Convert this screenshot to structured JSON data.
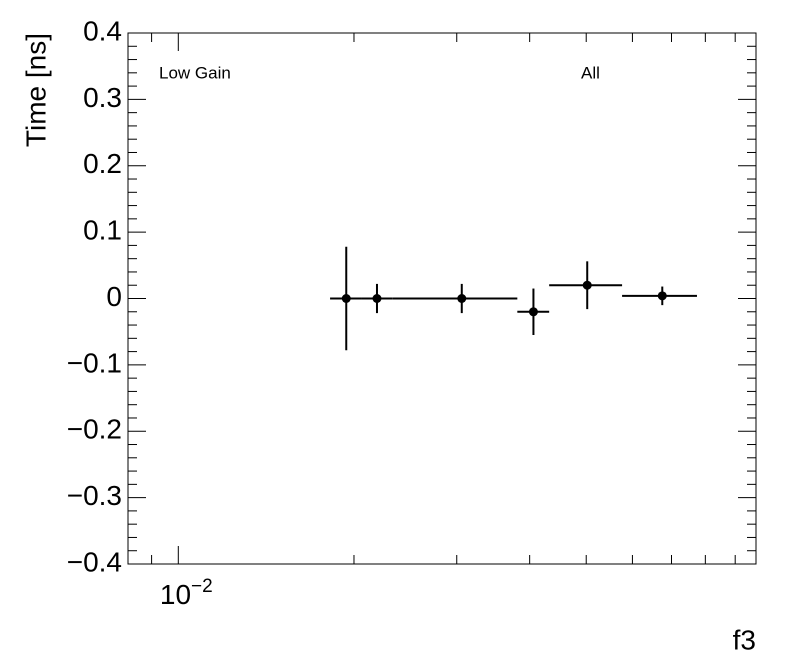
{
  "chart_data": {
    "type": "scatter",
    "ylabel": "Time [ns]",
    "xlabel": "f3",
    "annotations": [
      "Low Gain",
      "All"
    ],
    "log_x": true,
    "color": "#000000",
    "x": [
      0.0194,
      0.0219,
      0.0306,
      0.0406,
      0.0502,
      0.0675
    ],
    "x_low": [
      0.0182,
      0.0206,
      0.0233,
      0.0381,
      0.0432,
      0.0576
    ],
    "x_high": [
      0.0206,
      0.0233,
      0.0381,
      0.0432,
      0.0576,
      0.0774
    ],
    "values": [
      0,
      0,
      0,
      -0.02,
      0.02,
      0.004
    ],
    "yerr": [
      0.078,
      0.022,
      0.022,
      0.035,
      0.036,
      0.014
    ],
    "xlim": [
      0.0082,
      0.0977
    ],
    "ylim": [
      -0.4,
      0.4
    ],
    "xticks": [
      {
        "value": 0.01,
        "label": "10",
        "exponent": "−2"
      }
    ],
    "xminorticks": [
      0.009,
      0.02,
      0.03,
      0.04,
      0.05,
      0.06,
      0.07,
      0.08,
      0.09
    ],
    "yticks": [
      {
        "value": -0.4,
        "label": "−0.4"
      },
      {
        "value": -0.3,
        "label": "−0.3"
      },
      {
        "value": -0.2,
        "label": "−0.2"
      },
      {
        "value": -0.1,
        "label": "−0.1"
      },
      0,
      0.1,
      0.2,
      0.3,
      0.4
    ]
  }
}
